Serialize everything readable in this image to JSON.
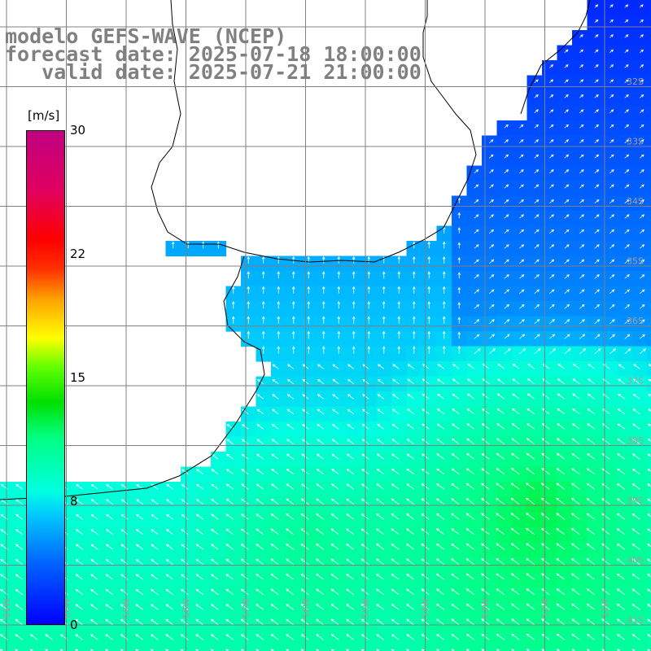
{
  "title": {
    "line1": "modelo GEFS-WAVE (NCEP)",
    "line2": "forecast date: 2025-07-18 18:00:00",
    "line3": "   valid date: 2025-07-21 21:00:00"
  },
  "colorbar": {
    "unit": "[m/s]",
    "ticks": [
      "30",
      "22",
      "15",
      "8",
      "0"
    ],
    "tick_values": [
      30,
      22,
      15,
      8,
      0
    ]
  },
  "lat_labels": [
    "32S",
    "33S",
    "34S",
    "35S",
    "36S",
    "37S",
    "38S",
    "39S",
    "40S",
    "41S"
  ],
  "lon_labels": [
    "61W",
    "60W",
    "59W",
    "58W",
    "57W",
    "56W",
    "55W",
    "54W",
    "53W",
    "52W",
    "51W"
  ],
  "colors": {
    "ocean_low": "#0040ff",
    "ocean_mid": "#00ffe8",
    "ocean_high": "#00ff60",
    "land": "#ffffff",
    "grid": "#808080",
    "coast": "#000000"
  }
}
